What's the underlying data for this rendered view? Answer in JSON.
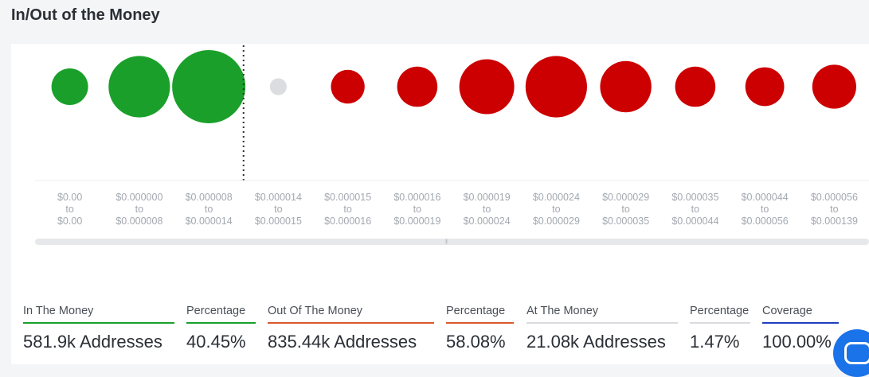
{
  "title": "In/Out of the Money",
  "chart_data": {
    "type": "scatter",
    "title": "In/Out of the Money",
    "categories": [
      [
        "$0.00",
        "to",
        "$0.00"
      ],
      [
        "$0.000000",
        "to",
        "$0.000008"
      ],
      [
        "$0.000008",
        "to",
        "$0.000014"
      ],
      [
        "$0.000014",
        "to",
        "$0.000015"
      ],
      [
        "$0.000015",
        "to",
        "$0.000016"
      ],
      [
        "$0.000016",
        "to",
        "$0.000019"
      ],
      [
        "$0.000019",
        "to",
        "$0.000024"
      ],
      [
        "$0.000024",
        "to",
        "$0.000029"
      ],
      [
        "$0.000029",
        "to",
        "$0.000035"
      ],
      [
        "$0.000035",
        "to",
        "$0.000044"
      ],
      [
        "$0.000044",
        "to",
        "$0.000056"
      ],
      [
        "$0.000056",
        "to",
        "$0.000139"
      ]
    ],
    "bubble_relative_size": [
      0.5,
      0.84,
      1.0,
      0.23,
      0.46,
      0.55,
      0.75,
      0.84,
      0.7,
      0.55,
      0.53,
      0.6
    ],
    "bubble_status": [
      "in",
      "in",
      "in",
      "at",
      "out",
      "out",
      "out",
      "out",
      "out",
      "out",
      "out",
      "out"
    ],
    "current_price_divider_after_index": 2,
    "colors": {
      "in": "#1aa02a",
      "out": "#cc0000",
      "at": "#dcdde0"
    }
  },
  "stats": [
    {
      "label": "In The Money",
      "value": "581.9k Addresses",
      "color": "#1aa02a"
    },
    {
      "label": "Percentage",
      "value": "40.45%",
      "color": "#1aa02a"
    },
    {
      "label": "Out Of The Money",
      "value": "835.44k Addresses",
      "color": "#d9592b"
    },
    {
      "label": "Percentage",
      "value": "58.08%",
      "color": "#d9592b"
    },
    {
      "label": "At The Money",
      "value": "21.08k Addresses",
      "color": "#d9dbde"
    },
    {
      "label": "Percentage",
      "value": "1.47%",
      "color": "#d9dbde"
    },
    {
      "label": "Coverage",
      "value": "100.00%",
      "color": "#1f3fbf"
    }
  ]
}
